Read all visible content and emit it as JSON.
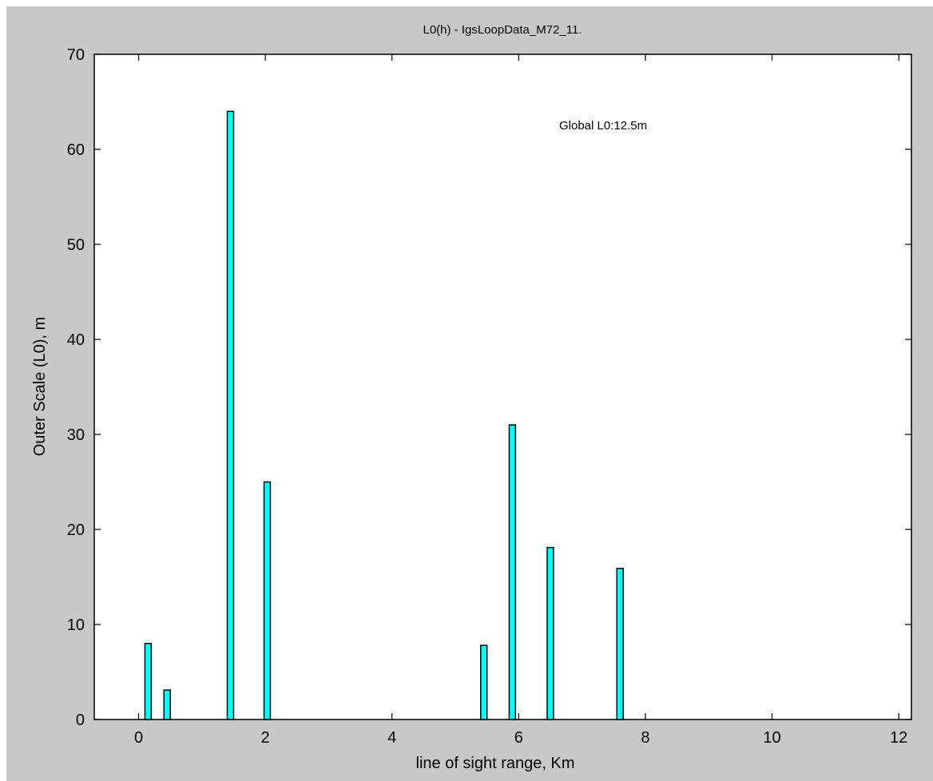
{
  "chart_data": {
    "type": "bar",
    "title": "L0(h) - IgsLoopData_M72_11.",
    "xlabel": "line of sight range, Km",
    "ylabel": "Outer Scale (L0), m",
    "xlim": [
      -0.7,
      12.2
    ],
    "ylim": [
      0,
      70
    ],
    "xticks": [
      "0",
      "2",
      "4",
      "6",
      "8",
      "10",
      "12"
    ],
    "yticks": [
      "0",
      "10",
      "20",
      "30",
      "40",
      "50",
      "60",
      "70"
    ],
    "bar_width_km": 0.1,
    "bar_color": "#00ffff",
    "grid": false,
    "x": [
      0.15,
      0.45,
      1.45,
      2.03,
      5.45,
      5.9,
      6.5,
      7.6
    ],
    "values": [
      8,
      3.1,
      64,
      25,
      7.8,
      31,
      18.1,
      15.9
    ],
    "annotation": "Global L0:12.5m"
  }
}
